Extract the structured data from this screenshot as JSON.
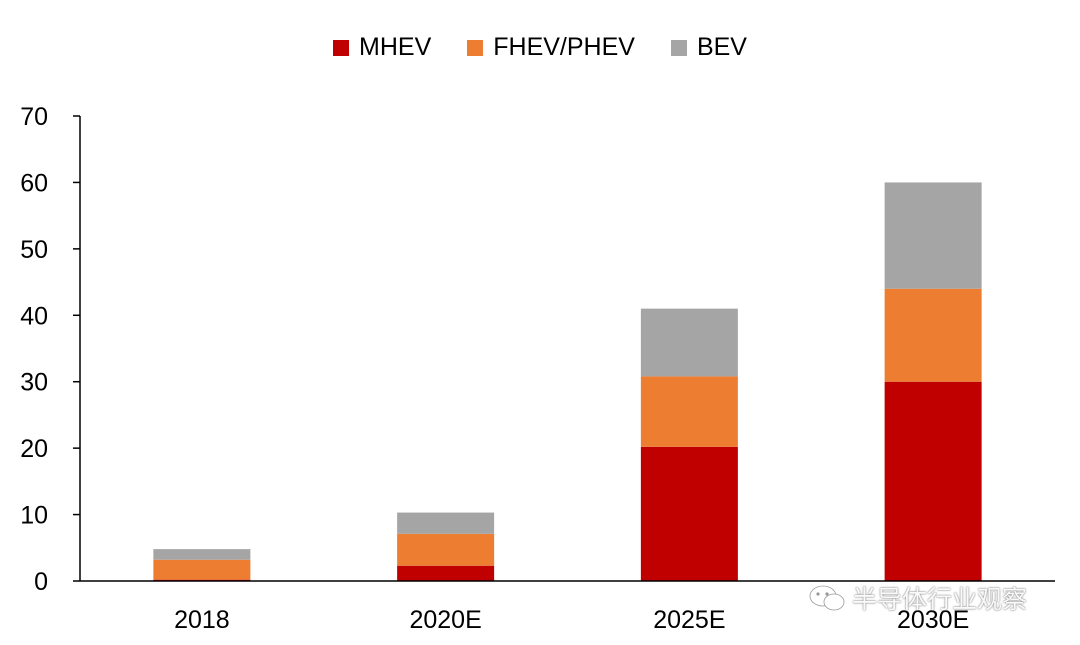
{
  "chart_data": {
    "type": "bar",
    "stacked": true,
    "categories": [
      "2018",
      "2020E",
      "2025E",
      "2030E"
    ],
    "series": [
      {
        "name": "MHEV",
        "color": "#c00000",
        "values": [
          0.2,
          2.3,
          20.2,
          30.0
        ]
      },
      {
        "name": "FHEV/PHEV",
        "color": "#ed7d31",
        "values": [
          3.0,
          4.8,
          10.6,
          14.0
        ]
      },
      {
        "name": "BEV",
        "color": "#a5a5a5",
        "values": [
          1.6,
          3.2,
          10.2,
          16.0
        ]
      }
    ],
    "ylim": [
      0,
      70
    ],
    "yticks": [
      0,
      10,
      20,
      30,
      40,
      50,
      60,
      70
    ],
    "grid": false,
    "legend_position": "top-center",
    "title": "",
    "xlabel": "",
    "ylabel": ""
  },
  "watermark": {
    "text": "半导体行业观察",
    "icon": "wechat-icon"
  }
}
